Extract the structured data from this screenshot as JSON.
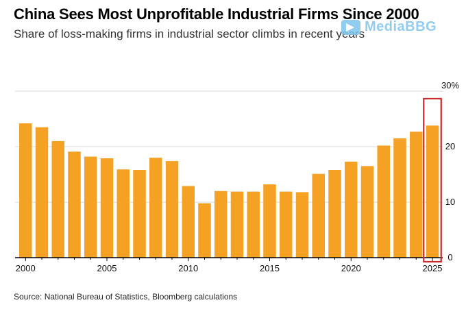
{
  "title": "China Sees Most Unprofitable Industrial Firms Since 2000",
  "subtitle": "Share of loss-making firms in industrial sector climbs in recent years",
  "source": "Source: National Bureau of Statistics, Bloomberg calculations",
  "watermark": "MediaBBG",
  "colors": {
    "bar": "#f5a123",
    "highlight_box": "#cc2a2a",
    "axis": "#000000",
    "gridline": "#d9d9d9"
  },
  "chart_data": {
    "type": "bar",
    "title": "China Sees Most Unprofitable Industrial Firms Since 2000",
    "subtitle": "Share of loss-making firms in industrial sector climbs in recent years",
    "xlabel": "",
    "ylabel": "",
    "categories": [
      2000,
      2001,
      2002,
      2003,
      2004,
      2005,
      2006,
      2007,
      2008,
      2009,
      2010,
      2011,
      2012,
      2013,
      2014,
      2015,
      2016,
      2017,
      2018,
      2019,
      2020,
      2021,
      2022,
      2023,
      2024,
      2025
    ],
    "values": [
      24.2,
      23.5,
      21.0,
      19.1,
      18.2,
      17.9,
      15.9,
      15.8,
      18.0,
      17.4,
      12.9,
      9.8,
      12.0,
      11.9,
      11.9,
      13.2,
      11.9,
      11.8,
      15.1,
      15.8,
      17.3,
      16.5,
      20.2,
      21.5,
      22.7,
      23.8
    ],
    "x_tick_labels": [
      "2000",
      "2005",
      "2010",
      "2015",
      "2020",
      "2025"
    ],
    "y_tick_labels": [
      "0",
      "10",
      "20",
      "30%"
    ],
    "y_ticks": [
      0,
      10,
      20,
      30
    ],
    "ylim": [
      0,
      30
    ],
    "y_axis_side": "right",
    "grid": true,
    "highlight": "2025"
  }
}
